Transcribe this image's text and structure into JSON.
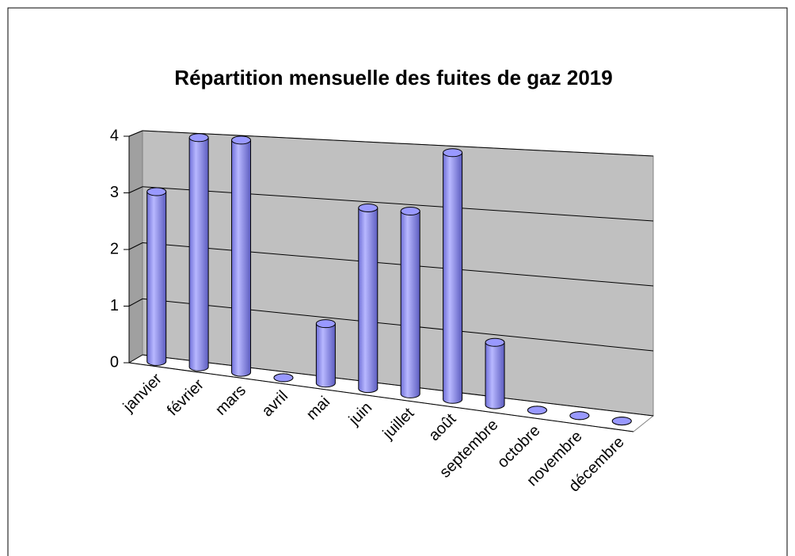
{
  "chart_data": {
    "type": "bar",
    "title": "Répartition mensuelle des fuites de gaz 2019",
    "categories": [
      "janvier",
      "février",
      "mars",
      "avril",
      "mai",
      "juin",
      "juillet",
      "août",
      "septembre",
      "octobre",
      "novembre",
      "décembre"
    ],
    "values": [
      3,
      4,
      4,
      0,
      1,
      3,
      3,
      4,
      1,
      0,
      0,
      0
    ],
    "color": "#9999ff",
    "ylim": [
      0,
      4
    ],
    "yticks": [
      0,
      1,
      2,
      3,
      4
    ],
    "grid": true
  }
}
